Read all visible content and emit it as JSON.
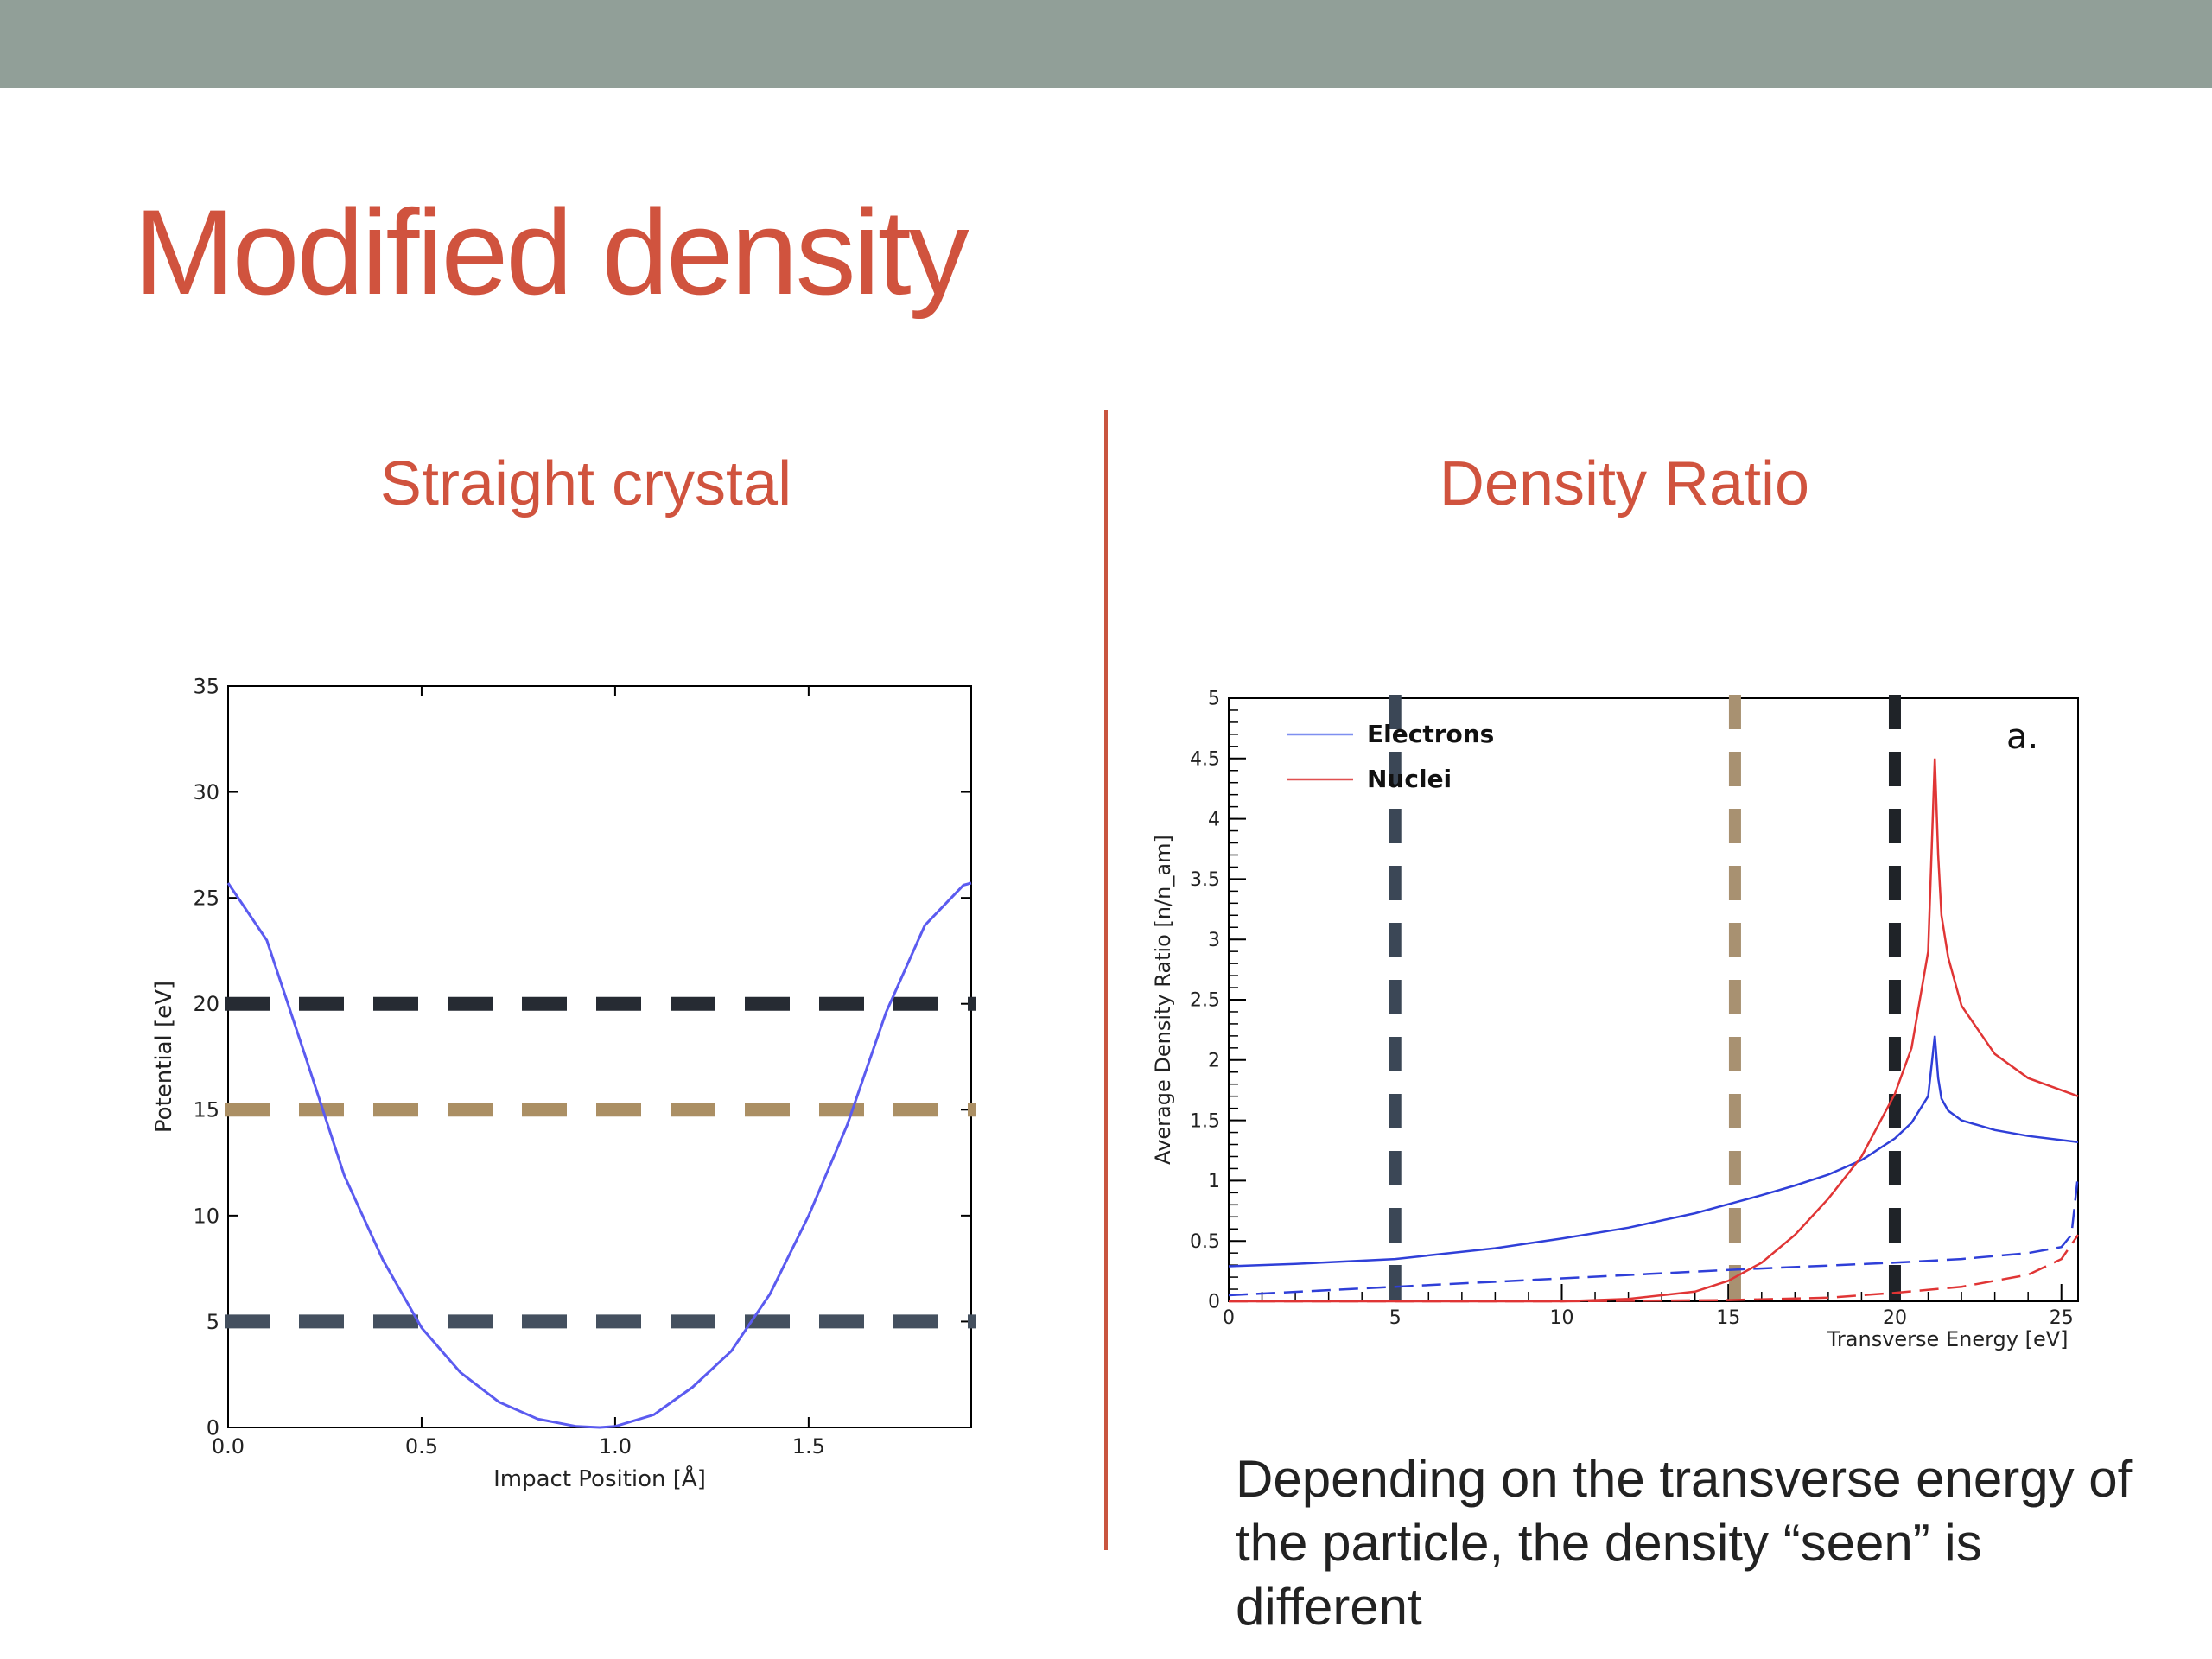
{
  "slide": {
    "title": "Modified density",
    "left_heading": "Straight crystal",
    "right_heading": "Density Ratio",
    "caption": "Depending on the transverse energy of the particle, the density “seen” is different",
    "colors": {
      "title": "#d0533e",
      "topbar": "#919f98",
      "divider": "#c9553f"
    }
  },
  "chart_data": [
    {
      "type": "line",
      "title": "",
      "xlabel": "Impact Position [Å]",
      "ylabel": "Potential [eV]",
      "xlim": [
        0,
        1.92
      ],
      "ylim": [
        0,
        35
      ],
      "xticks": [
        0.0,
        0.5,
        1.0,
        1.5
      ],
      "xtick_labels": [
        "0.0",
        "0.5",
        "1.0",
        "1.5"
      ],
      "yticks": [
        0,
        5,
        10,
        15,
        20,
        25,
        30,
        35
      ],
      "ytick_labels": [
        "0",
        "5",
        "10",
        "15",
        "20",
        "25",
        "30",
        "35"
      ],
      "grid": false,
      "series": [
        {
          "color": "#5b5bf0",
          "x": [
            0.0,
            0.1,
            0.2,
            0.3,
            0.4,
            0.5,
            0.6,
            0.7,
            0.8,
            0.9,
            0.96,
            1.0,
            1.1,
            1.2,
            1.3,
            1.4,
            1.5,
            1.6,
            1.7,
            1.8,
            1.9,
            1.92
          ],
          "y": [
            25.7,
            23.0,
            17.5,
            11.9,
            7.9,
            4.7,
            2.6,
            1.2,
            0.4,
            0.05,
            0.0,
            0.05,
            0.6,
            1.9,
            3.6,
            6.3,
            10.0,
            14.3,
            19.6,
            23.7,
            25.6,
            25.7
          ]
        }
      ],
      "reference_lines": [
        {
          "y": 20,
          "color": "#262b33"
        },
        {
          "y": 15,
          "color": "#ab8f64"
        },
        {
          "y": 5,
          "color": "#44505f"
        }
      ]
    },
    {
      "type": "line",
      "title": "",
      "xlabel": "Transverse Energy [eV]",
      "ylabel": "Average Density Ratio [n/n_am]",
      "xlim": [
        0,
        25.5
      ],
      "ylim": [
        0,
        5
      ],
      "xticks": [
        0,
        5,
        10,
        15,
        20,
        25
      ],
      "xtick_labels": [
        "0",
        "5",
        "10",
        "15",
        "20",
        "25"
      ],
      "yticks": [
        0,
        0.5,
        1,
        1.5,
        2,
        2.5,
        3,
        3.5,
        4,
        4.5,
        5
      ],
      "ytick_labels": [
        "0",
        "0.5",
        "1",
        "1.5",
        "2",
        "2.5",
        "3",
        "3.5",
        "4",
        "4.5",
        "5"
      ],
      "annotation": "a.",
      "legend": {
        "position": "top-left",
        "entries": [
          {
            "label": "Electrons",
            "color": "#7f8ff0"
          },
          {
            "label": "Nuclei",
            "color": "#e05050"
          }
        ]
      },
      "series": [
        {
          "name": "Electrons",
          "color": "#2f3fd8",
          "x": [
            0,
            2,
            5,
            8,
            10,
            12,
            14,
            16,
            17,
            18,
            19,
            20,
            20.5,
            21,
            21.2,
            21.3,
            21.4,
            21.6,
            22,
            23,
            24,
            25.5
          ],
          "y": [
            0.29,
            0.31,
            0.35,
            0.44,
            0.52,
            0.61,
            0.73,
            0.88,
            0.96,
            1.05,
            1.17,
            1.35,
            1.48,
            1.7,
            2.2,
            1.85,
            1.68,
            1.58,
            1.5,
            1.42,
            1.37,
            1.32
          ]
        },
        {
          "name": "Nuclei",
          "color": "#e03535",
          "x": [
            0,
            5,
            10,
            12,
            14,
            15,
            16,
            17,
            18,
            19,
            20,
            20.5,
            21,
            21.2,
            21.3,
            21.4,
            21.6,
            22,
            23,
            24,
            25.5
          ],
          "y": [
            0.0,
            0.0,
            0.0,
            0.02,
            0.08,
            0.17,
            0.32,
            0.55,
            0.85,
            1.2,
            1.72,
            2.1,
            2.9,
            4.5,
            3.7,
            3.2,
            2.85,
            2.45,
            2.05,
            1.85,
            1.7
          ]
        },
        {
          "name": "Electrons (dashed)",
          "color": "#2f3fd8",
          "x": [
            0,
            5,
            10,
            15,
            20,
            22,
            24,
            25,
            25.3,
            25.5
          ],
          "y": [
            0.05,
            0.12,
            0.19,
            0.26,
            0.32,
            0.35,
            0.4,
            0.45,
            0.55,
            1.05
          ]
        },
        {
          "name": "Nuclei (dashed)",
          "color": "#e03535",
          "x": [
            0,
            10,
            15,
            18,
            20,
            22,
            24,
            25,
            25.5
          ],
          "y": [
            0.0,
            0.0,
            0.01,
            0.03,
            0.07,
            0.12,
            0.22,
            0.35,
            0.55
          ]
        }
      ],
      "reference_lines": [
        {
          "x": 5,
          "color": "#3b4756"
        },
        {
          "x": 15.2,
          "color": "#a89171"
        },
        {
          "x": 20,
          "color": "#1f2328"
        }
      ]
    }
  ]
}
